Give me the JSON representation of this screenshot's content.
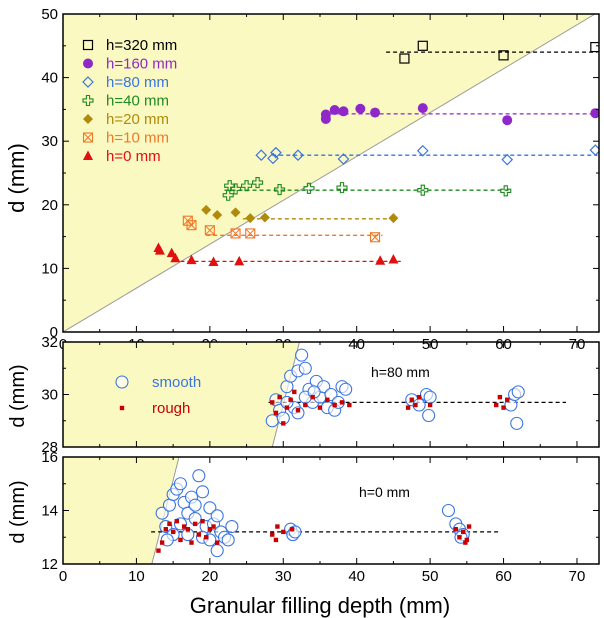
{
  "chart_data": [
    {
      "type": "scatter",
      "ylabel": "d  (mm)",
      "xlim": [
        0,
        73
      ],
      "ylim": [
        0,
        50
      ],
      "xticks": [
        0,
        10,
        20,
        30,
        40,
        50,
        60,
        70
      ],
      "yticks": [
        0,
        10,
        20,
        30,
        40,
        50
      ],
      "shaded_region": "above the line d = 0.69 x depth (yellow)",
      "legend_position": "top-left",
      "series": [
        {
          "name": "h=320 mm",
          "marker": "open-square",
          "color": "#000000",
          "fit_d": 44,
          "fit_x": [
            44,
            72.8
          ],
          "points": [
            [
              46.5,
              43
            ],
            [
              49,
              45
            ],
            [
              60,
              43.5
            ],
            [
              72.5,
              44.8
            ]
          ]
        },
        {
          "name": "h=160 mm",
          "marker": "filled-circle",
          "color": "#8e28c8",
          "fit_d": 34.3,
          "fit_x": [
            35.5,
            72.8
          ],
          "points": [
            [
              35.8,
              33.5
            ],
            [
              35.8,
              34.2
            ],
            [
              37,
              34.9
            ],
            [
              38.2,
              34.7
            ],
            [
              40.5,
              35.1
            ],
            [
              42.5,
              34.5
            ],
            [
              49,
              35.2
            ],
            [
              60.5,
              33.3
            ],
            [
              72.5,
              34.4
            ]
          ]
        },
        {
          "name": "h=80 mm",
          "marker": "open-diamond",
          "color": "#3a75e0",
          "fit_d": 27.8,
          "fit_x": [
            28.5,
            72.8
          ],
          "points": [
            [
              27,
              27.8
            ],
            [
              28.6,
              27.3
            ],
            [
              29,
              28.2
            ],
            [
              32,
              27.8
            ],
            [
              38.2,
              27.2
            ],
            [
              49,
              28.5
            ],
            [
              60.5,
              27.1
            ],
            [
              72.5,
              28.6
            ]
          ]
        },
        {
          "name": "h=40 mm",
          "marker": "open-cross",
          "color": "#1f8a1f",
          "fit_d": 22.3,
          "fit_x": [
            22,
            60.8
          ],
          "points": [
            [
              22.5,
              21.5
            ],
            [
              22.7,
              23
            ],
            [
              23.5,
              22.5
            ],
            [
              25,
              23
            ],
            [
              26.5,
              23.5
            ],
            [
              29.5,
              22.4
            ],
            [
              33.5,
              22.6
            ],
            [
              38,
              22.7
            ],
            [
              49,
              22.3
            ],
            [
              60.3,
              22.2
            ]
          ]
        },
        {
          "name": "h=20 mm",
          "marker": "filled-diamond",
          "color": "#b08a0a",
          "fit_d": 17.8,
          "fit_x": [
            24.5,
            45.5
          ],
          "points": [
            [
              19.5,
              19.2
            ],
            [
              21,
              18.4
            ],
            [
              23.5,
              18.8
            ],
            [
              25.5,
              17.9
            ],
            [
              27.5,
              18
            ],
            [
              45,
              17.9
            ]
          ]
        },
        {
          "name": "h=10 mm",
          "marker": "open-square-x",
          "color": "#f07828",
          "fit_d": 15.2,
          "fit_x": [
            19.5,
            43.5
          ],
          "points": [
            [
              17,
              17.5
            ],
            [
              17.5,
              16.8
            ],
            [
              20,
              16
            ],
            [
              23.5,
              15.5
            ],
            [
              25.5,
              15.5
            ],
            [
              42.5,
              14.9
            ]
          ]
        },
        {
          "name": "h=0 mm",
          "marker": "filled-triangle",
          "color": "#e01010",
          "fit_d": 11.1,
          "fit_x": [
            16,
            46
          ],
          "points": [
            [
              13,
              13.2
            ],
            [
              13.2,
              12.8
            ],
            [
              14.8,
              12.4
            ],
            [
              15.3,
              11.6
            ],
            [
              17.5,
              11.3
            ],
            [
              20.5,
              11
            ],
            [
              24,
              11.1
            ],
            [
              43.2,
              11.2
            ],
            [
              45,
              11.4
            ]
          ]
        }
      ],
      "legend_labels": [
        "h=320 mm",
        "h=160 mm",
        "h=80 mm",
        "h=40 mm",
        "h=20 mm",
        "h=10 mm",
        "h=0 mm"
      ]
    },
    {
      "type": "scatter",
      "ylabel": "d (mm)",
      "annotation": "h=80 mm",
      "xlim": [
        0,
        73
      ],
      "ylim": [
        28,
        32
      ],
      "yticks": [
        28,
        30,
        32
      ],
      "fit_d": 29.7,
      "fit_x": [
        28,
        68.5
      ],
      "legend_labels": [
        "smooth",
        "rough"
      ],
      "series": [
        {
          "name": "smooth",
          "marker": "open-circle",
          "color": "#3a75e0",
          "points": [
            [
              28.5,
              29
            ],
            [
              29,
              29.8
            ],
            [
              29.5,
              29.4
            ],
            [
              30,
              29.1
            ],
            [
              30.5,
              30.3
            ],
            [
              31,
              30.7
            ],
            [
              31.5,
              29.5
            ],
            [
              32,
              30.9
            ],
            [
              32.5,
              31.5
            ],
            [
              33,
              31
            ],
            [
              33.5,
              30.2
            ],
            [
              34,
              29.7
            ],
            [
              34.5,
              30.5
            ],
            [
              35,
              29.9
            ],
            [
              35.5,
              30.3
            ],
            [
              36,
              29.5
            ],
            [
              36.5,
              30
            ],
            [
              37,
              29.4
            ],
            [
              37.5,
              29.7
            ],
            [
              38,
              30.3
            ],
            [
              38.5,
              30.2
            ],
            [
              30.5,
              29.7
            ],
            [
              32,
              29.3
            ],
            [
              33,
              29.9
            ],
            [
              34.2,
              30.1
            ],
            [
              47.5,
              29.8
            ],
            [
              48.5,
              29.6
            ],
            [
              49.5,
              30
            ],
            [
              49.8,
              29.2
            ],
            [
              50,
              29.9
            ],
            [
              61,
              29.6
            ],
            [
              61.5,
              30
            ],
            [
              62,
              30.1
            ],
            [
              61.8,
              28.9
            ]
          ]
        },
        {
          "name": "rough",
          "marker": "filled-small-square",
          "color": "#c80000",
          "points": [
            [
              28.5,
              29.7
            ],
            [
              29,
              29.3
            ],
            [
              29.5,
              29.9
            ],
            [
              30,
              28.9
            ],
            [
              30.5,
              29.5
            ],
            [
              31,
              29.8
            ],
            [
              31.5,
              30.1
            ],
            [
              32,
              29.4
            ],
            [
              33,
              29.6
            ],
            [
              34,
              29.9
            ],
            [
              35,
              29.5
            ],
            [
              36,
              29.8
            ],
            [
              37,
              29.6
            ],
            [
              38,
              29.7
            ],
            [
              39,
              29.6
            ],
            [
              47,
              29.5
            ],
            [
              47.5,
              29.8
            ],
            [
              48,
              29.6
            ],
            [
              48.5,
              29.9
            ],
            [
              50,
              29.6
            ],
            [
              59,
              29.6
            ],
            [
              59.5,
              29.9
            ],
            [
              60,
              29.5
            ],
            [
              60.5,
              29.8
            ]
          ]
        }
      ]
    },
    {
      "type": "scatter",
      "ylabel": "d (mm)",
      "xlabel": "Granular filling depth    (mm)",
      "annotation": "h=0 mm",
      "xlim": [
        0,
        73
      ],
      "ylim": [
        12,
        16
      ],
      "xticks": [
        0,
        10,
        20,
        30,
        40,
        50,
        60,
        70
      ],
      "yticks": [
        12,
        14,
        16
      ],
      "fit_d": 13.2,
      "fit_x": [
        12,
        59.5
      ],
      "series": [
        {
          "name": "smooth",
          "marker": "open-circle",
          "color": "#3a75e0",
          "points": [
            [
              13.5,
              13.9
            ],
            [
              14,
              13.4
            ],
            [
              14.5,
              14.2
            ],
            [
              15,
              14.6
            ],
            [
              15.5,
              14.8
            ],
            [
              16,
              15
            ],
            [
              16.5,
              14.3
            ],
            [
              17,
              13.9
            ],
            [
              17.5,
              14.5
            ],
            [
              18,
              14.2
            ],
            [
              18.5,
              15.3
            ],
            [
              19,
              14.7
            ],
            [
              19.5,
              13.4
            ],
            [
              20,
              14.1
            ],
            [
              20.5,
              13.5
            ],
            [
              21,
              13.8
            ],
            [
              21.5,
              13.2
            ],
            [
              22,
              13
            ],
            [
              22.5,
              12.9
            ],
            [
              23,
              13.4
            ],
            [
              16,
              13.5
            ],
            [
              17,
              13.1
            ],
            [
              18,
              13.7
            ],
            [
              19,
              13
            ],
            [
              20,
              12.9
            ],
            [
              21,
              12.5
            ],
            [
              15,
              13.1
            ],
            [
              14.2,
              12.9
            ],
            [
              31,
              13.3
            ],
            [
              31.3,
              13.1
            ],
            [
              31.6,
              13.2
            ],
            [
              52.5,
              14
            ],
            [
              53.5,
              13.5
            ],
            [
              54,
              13.3
            ],
            [
              54.5,
              13.1
            ],
            [
              54.2,
              13
            ]
          ]
        },
        {
          "name": "rough",
          "marker": "filled-small-square",
          "color": "#c80000",
          "points": [
            [
              13,
              12.5
            ],
            [
              13.5,
              12.8
            ],
            [
              14,
              13.3
            ],
            [
              14.5,
              13.5
            ],
            [
              15,
              13.2
            ],
            [
              15.5,
              13.6
            ],
            [
              16,
              12.9
            ],
            [
              16.5,
              13.4
            ],
            [
              17,
              13.3
            ],
            [
              17.5,
              12.8
            ],
            [
              18,
              13.5
            ],
            [
              18.5,
              13.1
            ],
            [
              19,
              13.6
            ],
            [
              19.5,
              13
            ],
            [
              20,
              13.3
            ],
            [
              20.5,
              13.4
            ],
            [
              21,
              12.8
            ],
            [
              28.5,
              13.1
            ],
            [
              29,
              12.9
            ],
            [
              29.2,
              13.4
            ],
            [
              30,
              13.2
            ],
            [
              31.2,
              13.3
            ],
            [
              53.5,
              13.3
            ],
            [
              54,
              13
            ],
            [
              54.5,
              13.2
            ],
            [
              55,
              12.9
            ],
            [
              55.3,
              13.4
            ],
            [
              54.8,
              12.8
            ]
          ]
        }
      ]
    }
  ]
}
